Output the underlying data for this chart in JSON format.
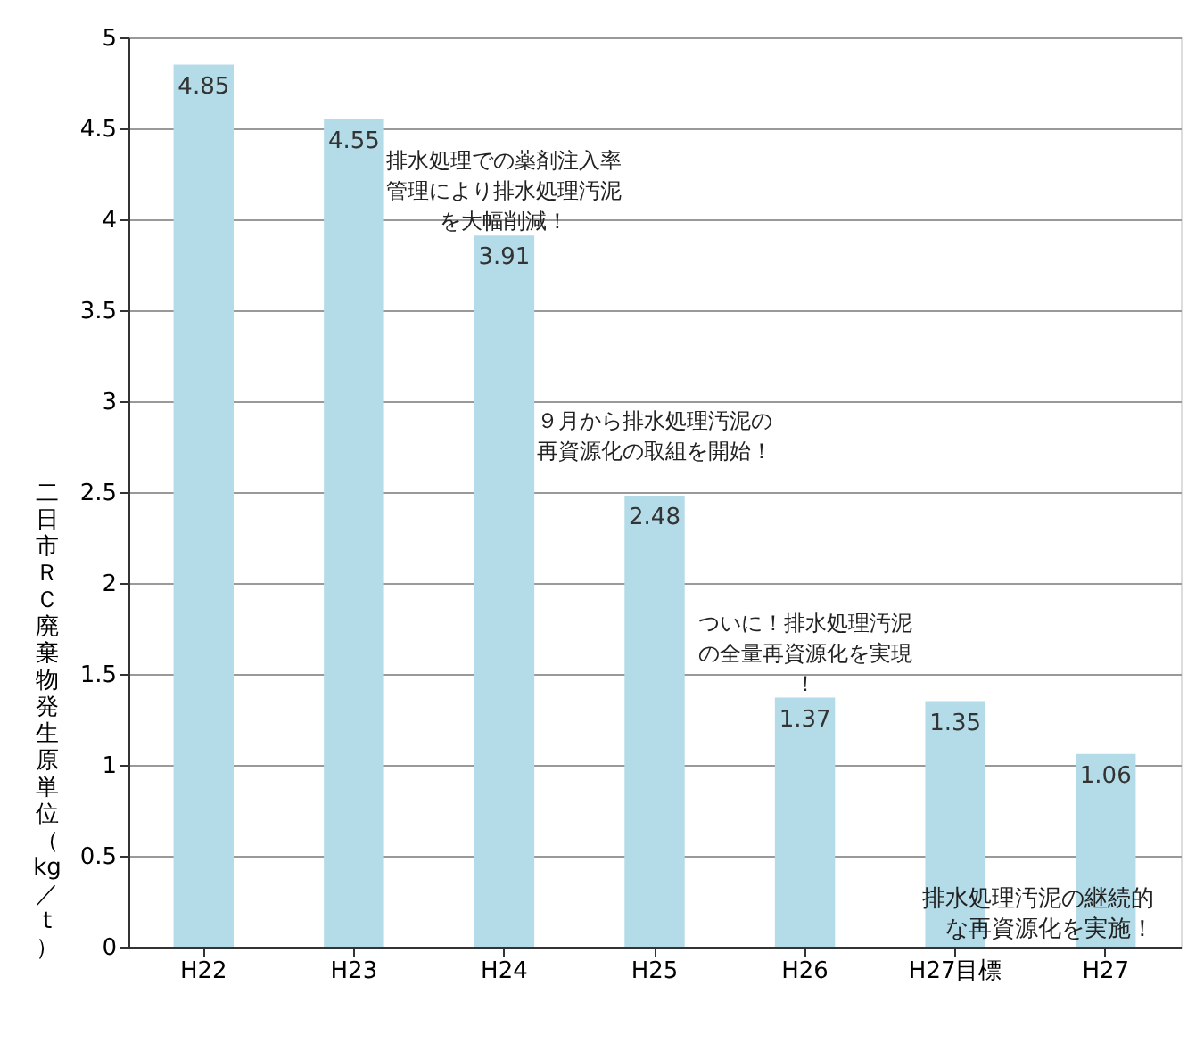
{
  "chart_data": {
    "type": "bar",
    "ylabel": "二日市ＲＣ廃棄物発生原単位（kg／t）",
    "categories": [
      "H22",
      "H23",
      "H24",
      "H25",
      "H26",
      "H27目標",
      "H27"
    ],
    "values": [
      4.85,
      4.55,
      3.91,
      2.48,
      1.37,
      1.35,
      1.06
    ],
    "color": "#b4dce8",
    "data_labels": true,
    "ylim": [
      0,
      5
    ],
    "yticks": [
      0,
      0.5,
      1,
      1.5,
      2,
      2.5,
      3,
      3.5,
      4,
      4.5,
      5
    ],
    "grid": "y",
    "annotations": [
      {
        "text": "排水処理での薬剤注入率管理により排水処理汚泥を大幅削減！",
        "x": "H24",
        "y": 3.91
      },
      {
        "text": "９月から排水処理汚泥の再資源化の取組を開始！",
        "x": "H25",
        "y": 2.48
      },
      {
        "text": "ついに！排水処理汚泥の全量再資源化を実現！",
        "x": "H26",
        "y": 1.37
      },
      "排水処理汚泥の継続的な再資源化を実施！"
    ]
  }
}
